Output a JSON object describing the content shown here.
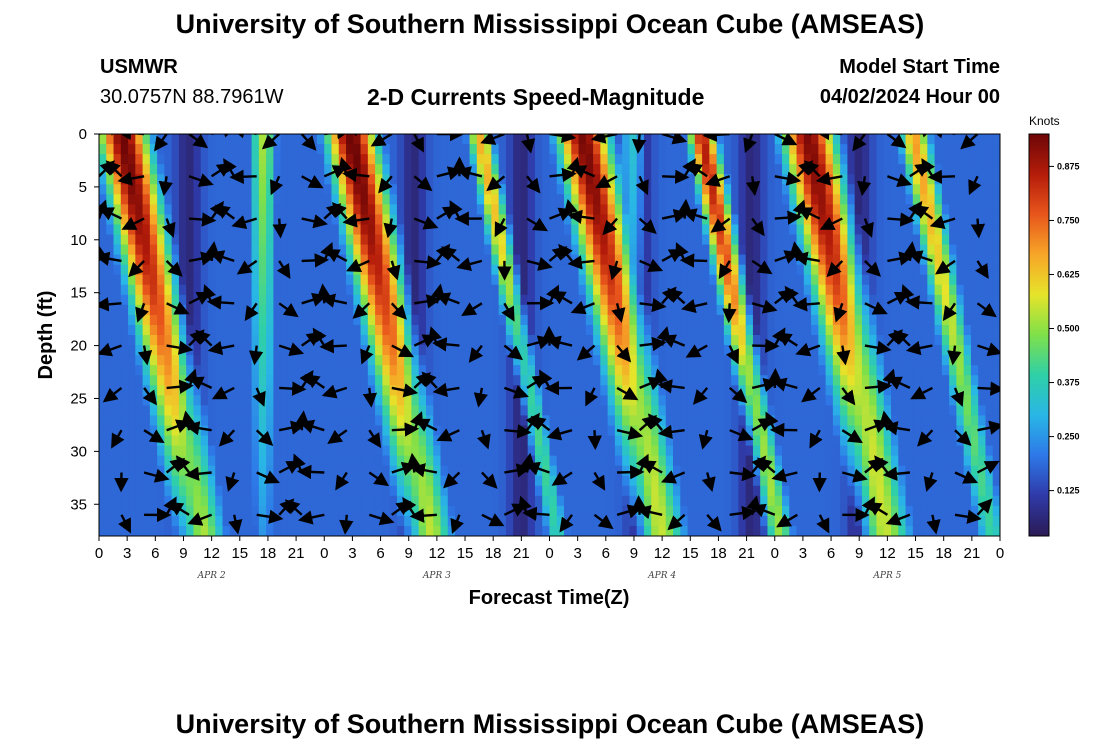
{
  "header": {
    "title": "University of Southern Mississippi Ocean Cube (AMSEAS)",
    "station": "USMWR",
    "coords": "30.0757N  88.7961W",
    "plot_title": "2-D Currents Speed-Magnitude",
    "start_label": "Model Start Time",
    "start_value": "04/02/2024 Hour 00"
  },
  "footer": {
    "title": "University of Southern Mississippi Ocean Cube (AMSEAS)"
  },
  "colors": {
    "ramp": [
      "#2b1a55",
      "#2f3aa8",
      "#2e78e8",
      "#29b6e6",
      "#2fd0a8",
      "#7ee04a",
      "#e6e42a",
      "#f7a628",
      "#e8561c",
      "#b41c0a",
      "#6e0606"
    ],
    "arrow": "#000000"
  },
  "chart_data": {
    "type": "heatmap",
    "xlabel": "Forecast Time(Z)",
    "ylabel": "Depth (ft)",
    "x_ticks": [
      "0",
      "3",
      "6",
      "9",
      "12",
      "15",
      "18",
      "21",
      "0",
      "3",
      "6",
      "9",
      "12",
      "15",
      "18",
      "21",
      "0",
      "3",
      "6",
      "9",
      "12",
      "15",
      "18",
      "21",
      "0",
      "3",
      "6",
      "9",
      "12",
      "15",
      "18",
      "21",
      "0"
    ],
    "day_labels": [
      "APR 2",
      "APR 3",
      "APR 4",
      "APR 5"
    ],
    "y_ticks": [
      0,
      5,
      10,
      15,
      20,
      25,
      30,
      35
    ],
    "xlim_hours": [
      0,
      96
    ],
    "ylim_ft": [
      0,
      38
    ],
    "colorbar": {
      "unit": "Knots",
      "ticks": [
        "0.875",
        "0.750",
        "0.625",
        "0.500",
        "0.375",
        "0.250",
        "0.125"
      ],
      "range": [
        0.02,
        0.95
      ]
    },
    "speed_model": {
      "lobes": [
        {
          "t": 2.5,
          "width": 2.8,
          "amp": 0.95
        },
        {
          "t": 26.8,
          "width": 2.8,
          "amp": 0.96
        },
        {
          "t": 40.5,
          "width": 1.4,
          "amp": 0.66
        },
        {
          "t": 51.5,
          "width": 2.9,
          "amp": 0.94
        },
        {
          "t": 64.2,
          "width": 1.6,
          "amp": 0.86
        },
        {
          "t": 75.5,
          "width": 3.0,
          "amp": 0.93
        },
        {
          "t": 86.8,
          "width": 1.7,
          "amp": 0.68
        }
      ],
      "minor": [
        {
          "t": 17.5,
          "width": 1.5,
          "amp": 0.66
        },
        {
          "t": 57.0,
          "width": 1.5,
          "amp": 0.55
        }
      ],
      "tilt_hours_per_ft": 0.22,
      "background": 0.18
    }
  }
}
